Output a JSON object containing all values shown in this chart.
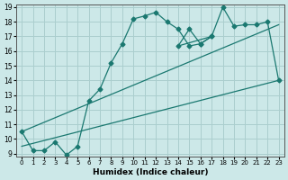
{
  "xlabel": "Humidex (Indice chaleur)",
  "bg_color": "#cce8e8",
  "line_color": "#1a7870",
  "grid_color": "#aacece",
  "xlim": [
    -0.5,
    23.5
  ],
  "ylim": [
    8.8,
    19.2
  ],
  "xticks": [
    0,
    1,
    2,
    3,
    4,
    5,
    6,
    7,
    8,
    9,
    10,
    11,
    12,
    13,
    14,
    15,
    16,
    17,
    18,
    19,
    20,
    21,
    22,
    23
  ],
  "yticks": [
    9,
    10,
    11,
    12,
    13,
    14,
    15,
    16,
    17,
    18,
    19
  ],
  "series": [
    {
      "x": [
        0,
        1,
        2,
        3,
        4,
        5,
        6,
        7,
        8,
        9,
        10,
        11,
        12,
        13,
        14,
        15,
        16,
        17,
        18,
        19,
        20,
        21,
        22,
        23
      ],
      "y": [
        10.5,
        9.2,
        9.2,
        9.8,
        8.9,
        9.5,
        12.6,
        13.4,
        15.2,
        16.5,
        18.2,
        18.4,
        18.65,
        18.0,
        17.5,
        16.35,
        16.5,
        17.0,
        null,
        null,
        null,
        null,
        null,
        null
      ],
      "marker": true
    },
    {
      "x": [
        0,
        1,
        2,
        3,
        4,
        5,
        14,
        15,
        16,
        17,
        18,
        19,
        20,
        21,
        22,
        23
      ],
      "y": [
        10.5,
        9.2,
        9.2,
        9.8,
        8.9,
        9.5,
        16.35,
        17.5,
        16.5,
        17.0,
        19.0,
        17.7,
        17.8,
        17.8,
        18.0,
        14.0
      ],
      "marker": true
    },
    {
      "x": [
        0,
        23
      ],
      "y": [
        9.5,
        14.0
      ],
      "marker": false
    },
    {
      "x": [
        0,
        23
      ],
      "y": [
        10.5,
        17.8
      ],
      "marker": false
    }
  ]
}
